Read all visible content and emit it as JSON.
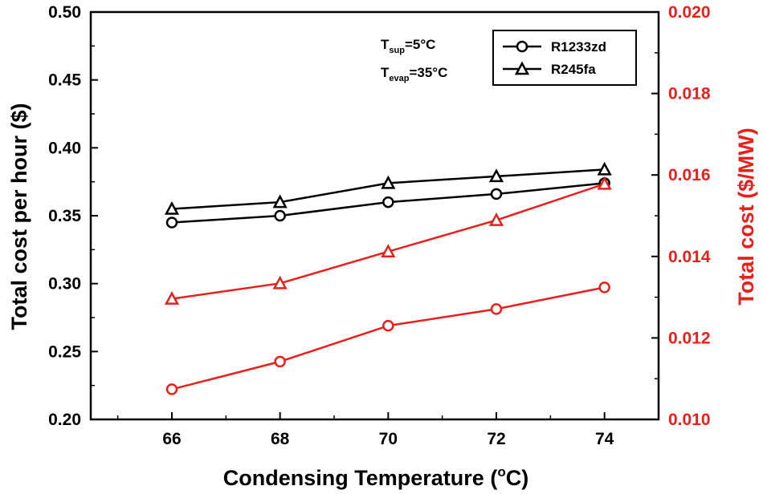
{
  "chart_data": {
    "type": "line",
    "xlabel": "Condensing Temperature (",
    "xlabel_sup": "o",
    "xlabel_end": "C)",
    "ylabel_left": "Total cost per hour ($)",
    "ylabel_right": "Total cost  ($/MW)",
    "x": [
      66,
      68,
      70,
      72,
      74
    ],
    "xlim": [
      64.5,
      75
    ],
    "ylim_left": [
      0.2,
      0.5
    ],
    "ylim_right": [
      0.01,
      0.02
    ],
    "x_ticks": [
      "66",
      "68",
      "70",
      "72",
      "74"
    ],
    "y_ticks_left": [
      "0.20",
      "0.25",
      "0.30",
      "0.35",
      "0.40",
      "0.45",
      "0.50"
    ],
    "y_ticks_right": [
      "0.010",
      "0.012",
      "0.014",
      "0.016",
      "0.018",
      "0.020"
    ],
    "series": [
      {
        "name": "R1233zd",
        "axis": "left",
        "color": "#000000",
        "marker": "circle",
        "values": [
          0.345,
          0.35,
          0.36,
          0.366,
          0.374
        ]
      },
      {
        "name": "R245fa",
        "axis": "left",
        "color": "#000000",
        "marker": "triangle",
        "values": [
          0.355,
          0.36,
          0.374,
          0.379,
          0.384
        ]
      },
      {
        "name": "R1233zd (right)",
        "axis": "right",
        "color": "#e8201c",
        "marker": "circle",
        "values": [
          0.01074,
          0.01142,
          0.0123,
          0.01271,
          0.01324
        ]
      },
      {
        "name": "R245fa (right)",
        "axis": "right",
        "color": "#e8201c",
        "marker": "triangle",
        "values": [
          0.01296,
          0.01334,
          0.01412,
          0.01489,
          0.01578
        ]
      }
    ],
    "legend": {
      "placement": "top-right",
      "entries": [
        "R1233zd",
        "R245fa"
      ]
    },
    "annotation": {
      "line1_main": "T",
      "line1_sub": "sup",
      "line1_rest": "=5°C",
      "line2_main": "T",
      "line2_sub": "evap",
      "line2_rest": "=35°C"
    },
    "colors": {
      "left_axis": "#000000",
      "right_axis": "#e8201c"
    }
  }
}
